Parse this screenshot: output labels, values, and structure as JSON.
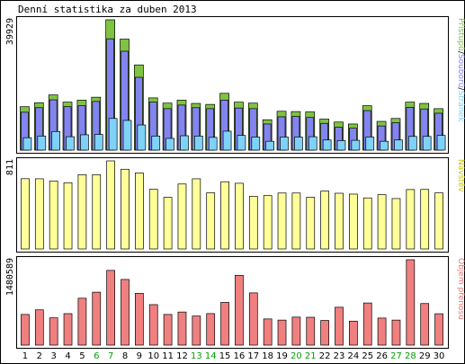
{
  "chart_data": {
    "type": "bar",
    "title": "Denní statistika za duben 2013",
    "categories": [
      "1",
      "2",
      "3",
      "4",
      "5",
      "6",
      "7",
      "8",
      "9",
      "10",
      "11",
      "12",
      "13",
      "14",
      "15",
      "16",
      "17",
      "18",
      "19",
      "20",
      "21",
      "22",
      "23",
      "24",
      "25",
      "26",
      "27",
      "28",
      "29",
      "30"
    ],
    "weekend_days": [
      "6",
      "7",
      "13",
      "14",
      "20",
      "21",
      "27",
      "28"
    ],
    "panels": [
      {
        "name": "hits-files-pages",
        "max_label": "39929",
        "ymax": 39929,
        "legend": [
          "Přístupů",
          "Souborů",
          "Stránek"
        ],
        "legend_separator": "/",
        "series": [
          {
            "name": "Přístupů",
            "color": "#7ec342",
            "values": [
              13300,
              14500,
              16900,
              14700,
              15300,
              16200,
              39929,
              34000,
              26100,
              16000,
              14400,
              15300,
              14300,
              14000,
              17400,
              14700,
              14400,
              9300,
              11900,
              11800,
              11700,
              9500,
              8600,
              8000,
              13600,
              8800,
              9700,
              14700,
              14300,
              12700
            ]
          },
          {
            "name": "Souborů",
            "color": "#8484f0",
            "values": [
              11600,
              13000,
              15400,
              13300,
              13600,
              14900,
              34100,
              30300,
              22300,
              14700,
              12700,
              13800,
              13000,
              12700,
              15300,
              12900,
              12700,
              8000,
              10200,
              10300,
              10000,
              8200,
              7000,
              6700,
              12100,
              7400,
              8400,
              13100,
              12600,
              11300
            ]
          },
          {
            "name": "Stránek",
            "color": "#7fd2f7",
            "values": [
              3800,
              4300,
              5700,
              4100,
              4700,
              4800,
              9700,
              9100,
              7700,
              4300,
              3600,
              4400,
              4300,
              3900,
              5800,
              4500,
              4000,
              2700,
              4000,
              4000,
              4100,
              3100,
              2900,
              3000,
              4000,
              2700,
              3100,
              4200,
              4200,
              4500
            ]
          }
        ]
      },
      {
        "name": "visits",
        "max_label": "811",
        "ymax": 811,
        "legend": [
          "Návštěv"
        ],
        "legend_separator": "/",
        "series": [
          {
            "name": "Návštěv",
            "color": "#ffff99",
            "values": [
              647,
              646,
              625,
              610,
              684,
              684,
              811,
              734,
              700,
              549,
              475,
              598,
              646,
              517,
              619,
              605,
              484,
              491,
              515,
              515,
              476,
              533,
              513,
              505,
              470,
              500,
              464,
              547,
              548,
              516
            ]
          }
        ]
      },
      {
        "name": "transfer",
        "max_label": "1480589",
        "ymax": 1480589,
        "legend": [
          "Objem přenosu"
        ],
        "legend_separator": "/",
        "series": [
          {
            "name": "Objem přenosu",
            "color": "#f08080",
            "values": [
              532000,
              612000,
              473000,
              546000,
              813000,
              918000,
              1296000,
              1139000,
              898000,
              702000,
              532000,
              574000,
              504000,
              547000,
              741000,
              1210000,
              906000,
              454000,
              434000,
              486000,
              483000,
              428000,
              657000,
              416000,
              731000,
              469000,
              434000,
              1480589,
              721000,
              544000
            ]
          }
        ]
      }
    ],
    "colors": {
      "weekday_label": "#000000",
      "weekend_label": "#00a000",
      "visits_legend": "#c8c800",
      "transfer_legend": "#f07070",
      "border": "#000000"
    }
  }
}
